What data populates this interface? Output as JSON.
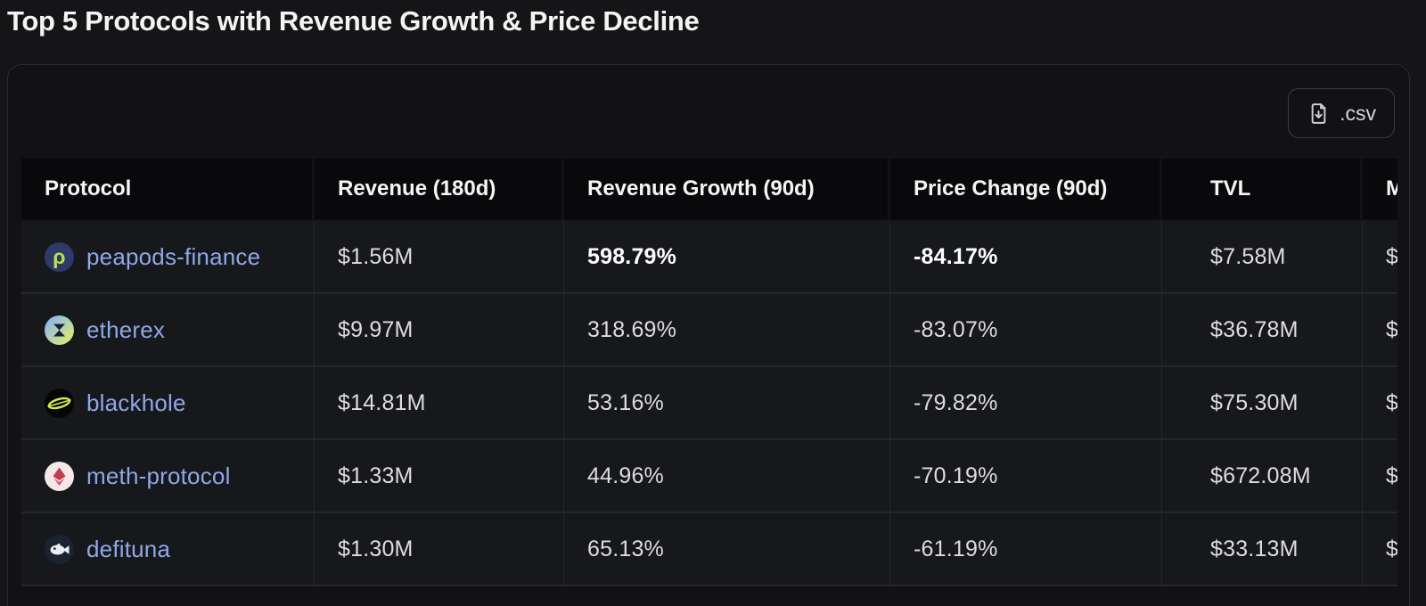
{
  "page": {
    "title": "Top 5 Protocols with Revenue Growth & Price Decline"
  },
  "toolbar": {
    "csv_button_label": ".csv",
    "csv_icon": "file-download-icon"
  },
  "table": {
    "columns": [
      {
        "key": "protocol",
        "label": "Protocol"
      },
      {
        "key": "revenue",
        "label": "Revenue (180d)"
      },
      {
        "key": "growth",
        "label": "Revenue Growth (90d)"
      },
      {
        "key": "price",
        "label": "Price Change (90d)"
      },
      {
        "key": "tvl",
        "label": "TVL"
      },
      {
        "key": "mcap",
        "label": "M"
      }
    ],
    "rows": [
      {
        "protocol": "peapods-finance",
        "icon": "peapods-icon",
        "revenue": "$1.56M",
        "growth": "598.79%",
        "price": "-84.17%",
        "tvl": "$7.58M",
        "mcap": "$",
        "emphasis": true
      },
      {
        "protocol": "etherex",
        "icon": "etherex-icon",
        "revenue": "$9.97M",
        "growth": "318.69%",
        "price": "-83.07%",
        "tvl": "$36.78M",
        "mcap": "$",
        "emphasis": false
      },
      {
        "protocol": "blackhole",
        "icon": "blackhole-icon",
        "revenue": "$14.81M",
        "growth": "53.16%",
        "price": "-79.82%",
        "tvl": "$75.30M",
        "mcap": "$",
        "emphasis": false
      },
      {
        "protocol": "meth-protocol",
        "icon": "meth-protocol-icon",
        "revenue": "$1.33M",
        "growth": "44.96%",
        "price": "-70.19%",
        "tvl": "$672.08M",
        "mcap": "$",
        "emphasis": false
      },
      {
        "protocol": "defituna",
        "icon": "defituna-icon",
        "revenue": "$1.30M",
        "growth": "65.13%",
        "price": "-61.19%",
        "tvl": "$33.13M",
        "mcap": "$",
        "emphasis": false
      }
    ]
  },
  "colors": {
    "page_bg": "#151517",
    "card_bg": "#121215",
    "header_bg": "#09090b",
    "row_bg": "#17181b",
    "link": "#8ea9e8",
    "accent_lime": "#b8e54d"
  }
}
